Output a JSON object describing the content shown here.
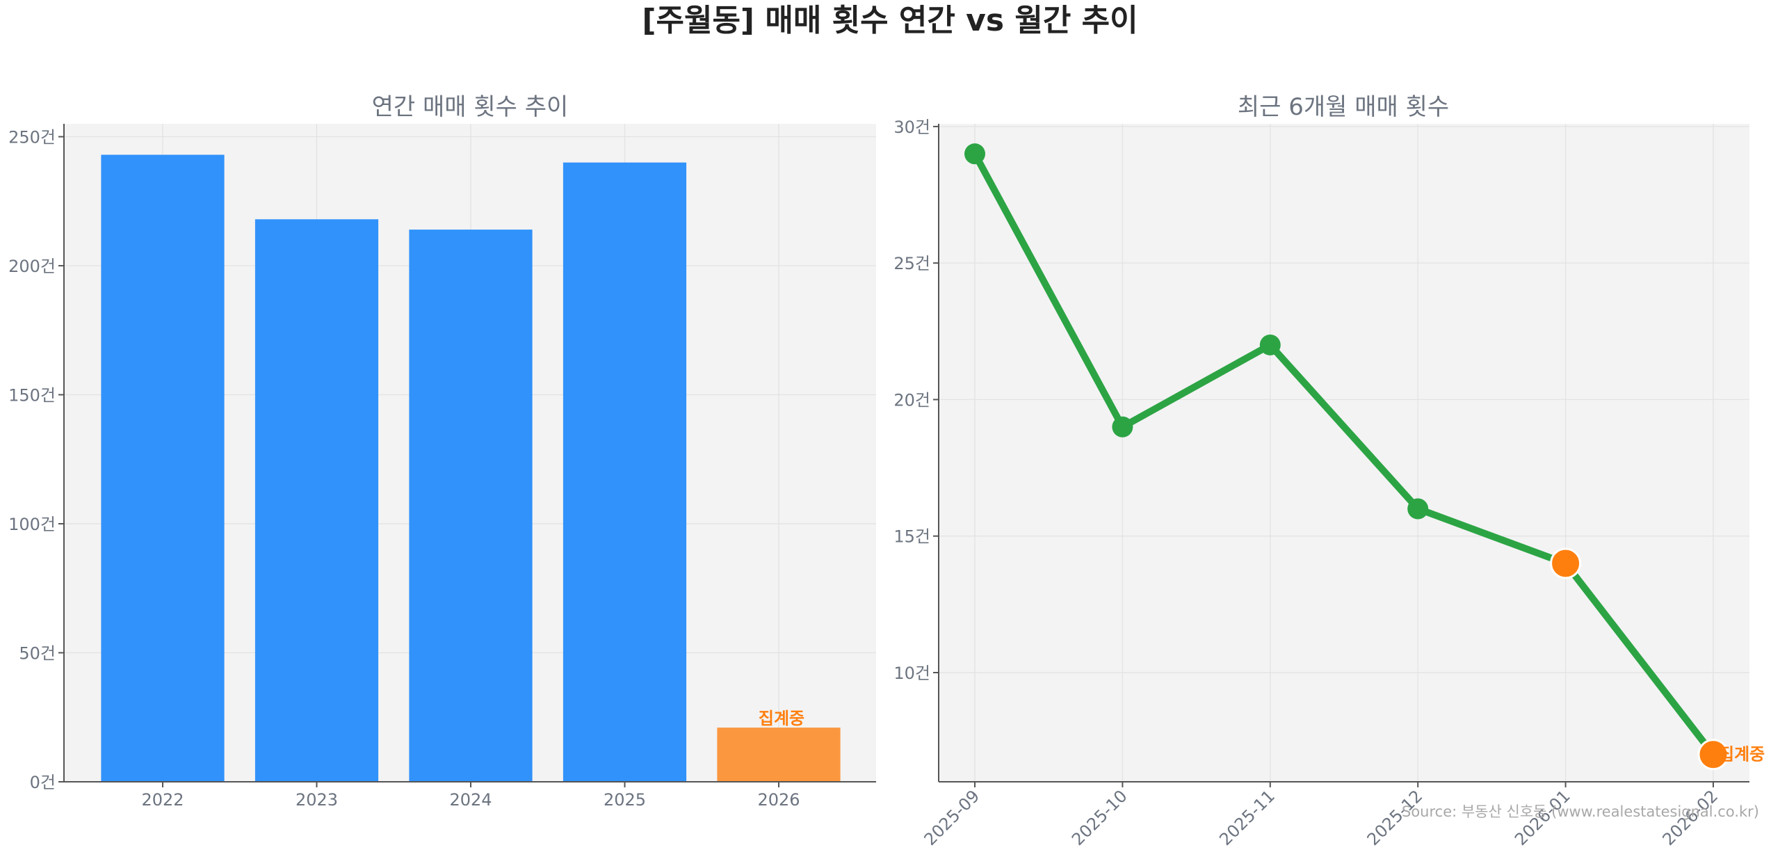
{
  "title": "[주월동] 매매 횟수 연간 vs 월간 추이",
  "source": "Source: 부동산 신호등 (www.realestatesignal.co.kr)",
  "colors": {
    "bar": "#3192fb",
    "bar_partial": "#fb973f",
    "line": "#2ca444",
    "point_partial": "#ff7f0e",
    "axes_bg": "#f3f3f3"
  },
  "chart_data": [
    {
      "type": "bar",
      "title": "연간 매매 횟수 추이",
      "categories": [
        "2022",
        "2023",
        "2024",
        "2025",
        "2026"
      ],
      "values": [
        243,
        218,
        214,
        240,
        21
      ],
      "partial": [
        false,
        false,
        false,
        false,
        true
      ],
      "partial_label": "집계중",
      "ylim": [
        0,
        255
      ],
      "yticks": [
        0,
        50,
        100,
        150,
        200,
        250
      ],
      "ytick_labels": [
        "0건",
        "50건",
        "100건",
        "150건",
        "200건",
        "250건"
      ],
      "grid": true
    },
    {
      "type": "line",
      "title": "최근 6개월 매매 횟수",
      "x": [
        "2025-09",
        "2025-10",
        "2025-11",
        "2025-12",
        "2026-01",
        "2026-02"
      ],
      "values": [
        29,
        19,
        22,
        16,
        14,
        7
      ],
      "partial": [
        false,
        false,
        false,
        false,
        true,
        true
      ],
      "partial_label": "집계중",
      "ylim": [
        6.0,
        30.1
      ],
      "yticks": [
        10,
        15,
        20,
        25,
        30
      ],
      "ytick_labels": [
        "10건",
        "15건",
        "20건",
        "25건",
        "30건"
      ],
      "grid": true
    }
  ]
}
